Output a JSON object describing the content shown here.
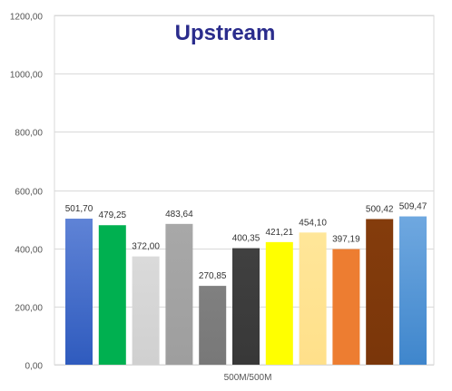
{
  "chart_data": {
    "type": "bar",
    "title": "Upstream",
    "categories": [
      "500M/500M"
    ],
    "series": [
      {
        "label": "501,70",
        "value": 501.7,
        "color_top": "#5F83D6",
        "color_bottom": "#2F5BBE"
      },
      {
        "label": "479,25",
        "value": 479.25,
        "color_top": "#00B050",
        "color_bottom": "#00B050"
      },
      {
        "label": "372,00",
        "value": 372.0,
        "color_top": "#DADADA",
        "color_bottom": "#D0D0D0"
      },
      {
        "label": "483,64",
        "value": 483.64,
        "color_top": "#A8A8A8",
        "color_bottom": "#9E9E9E"
      },
      {
        "label": "270,85",
        "value": 270.85,
        "color_top": "#808080",
        "color_bottom": "#787878"
      },
      {
        "label": "400,35",
        "value": 400.35,
        "color_top": "#404040",
        "color_bottom": "#383838"
      },
      {
        "label": "421,21",
        "value": 421.21,
        "color_top": "#FFFF00",
        "color_bottom": "#FFFF00"
      },
      {
        "label": "454,10",
        "value": 454.1,
        "color_top": "#FFE699",
        "color_bottom": "#FFE08A"
      },
      {
        "label": "397,19",
        "value": 397.19,
        "color_top": "#ED7D31",
        "color_bottom": "#ED7D31"
      },
      {
        "label": "500,42",
        "value": 500.42,
        "color_top": "#843C0C",
        "color_bottom": "#7A360A"
      },
      {
        "label": "509,47",
        "value": 509.47,
        "color_top": "#6FA8E0",
        "color_bottom": "#3F86CC"
      }
    ],
    "ylim": [
      0,
      1200
    ],
    "yticks": [
      "0,00",
      "200,00",
      "400,00",
      "600,00",
      "800,00",
      "1000,00",
      "1200,00"
    ],
    "grid": true,
    "legend": "none"
  }
}
